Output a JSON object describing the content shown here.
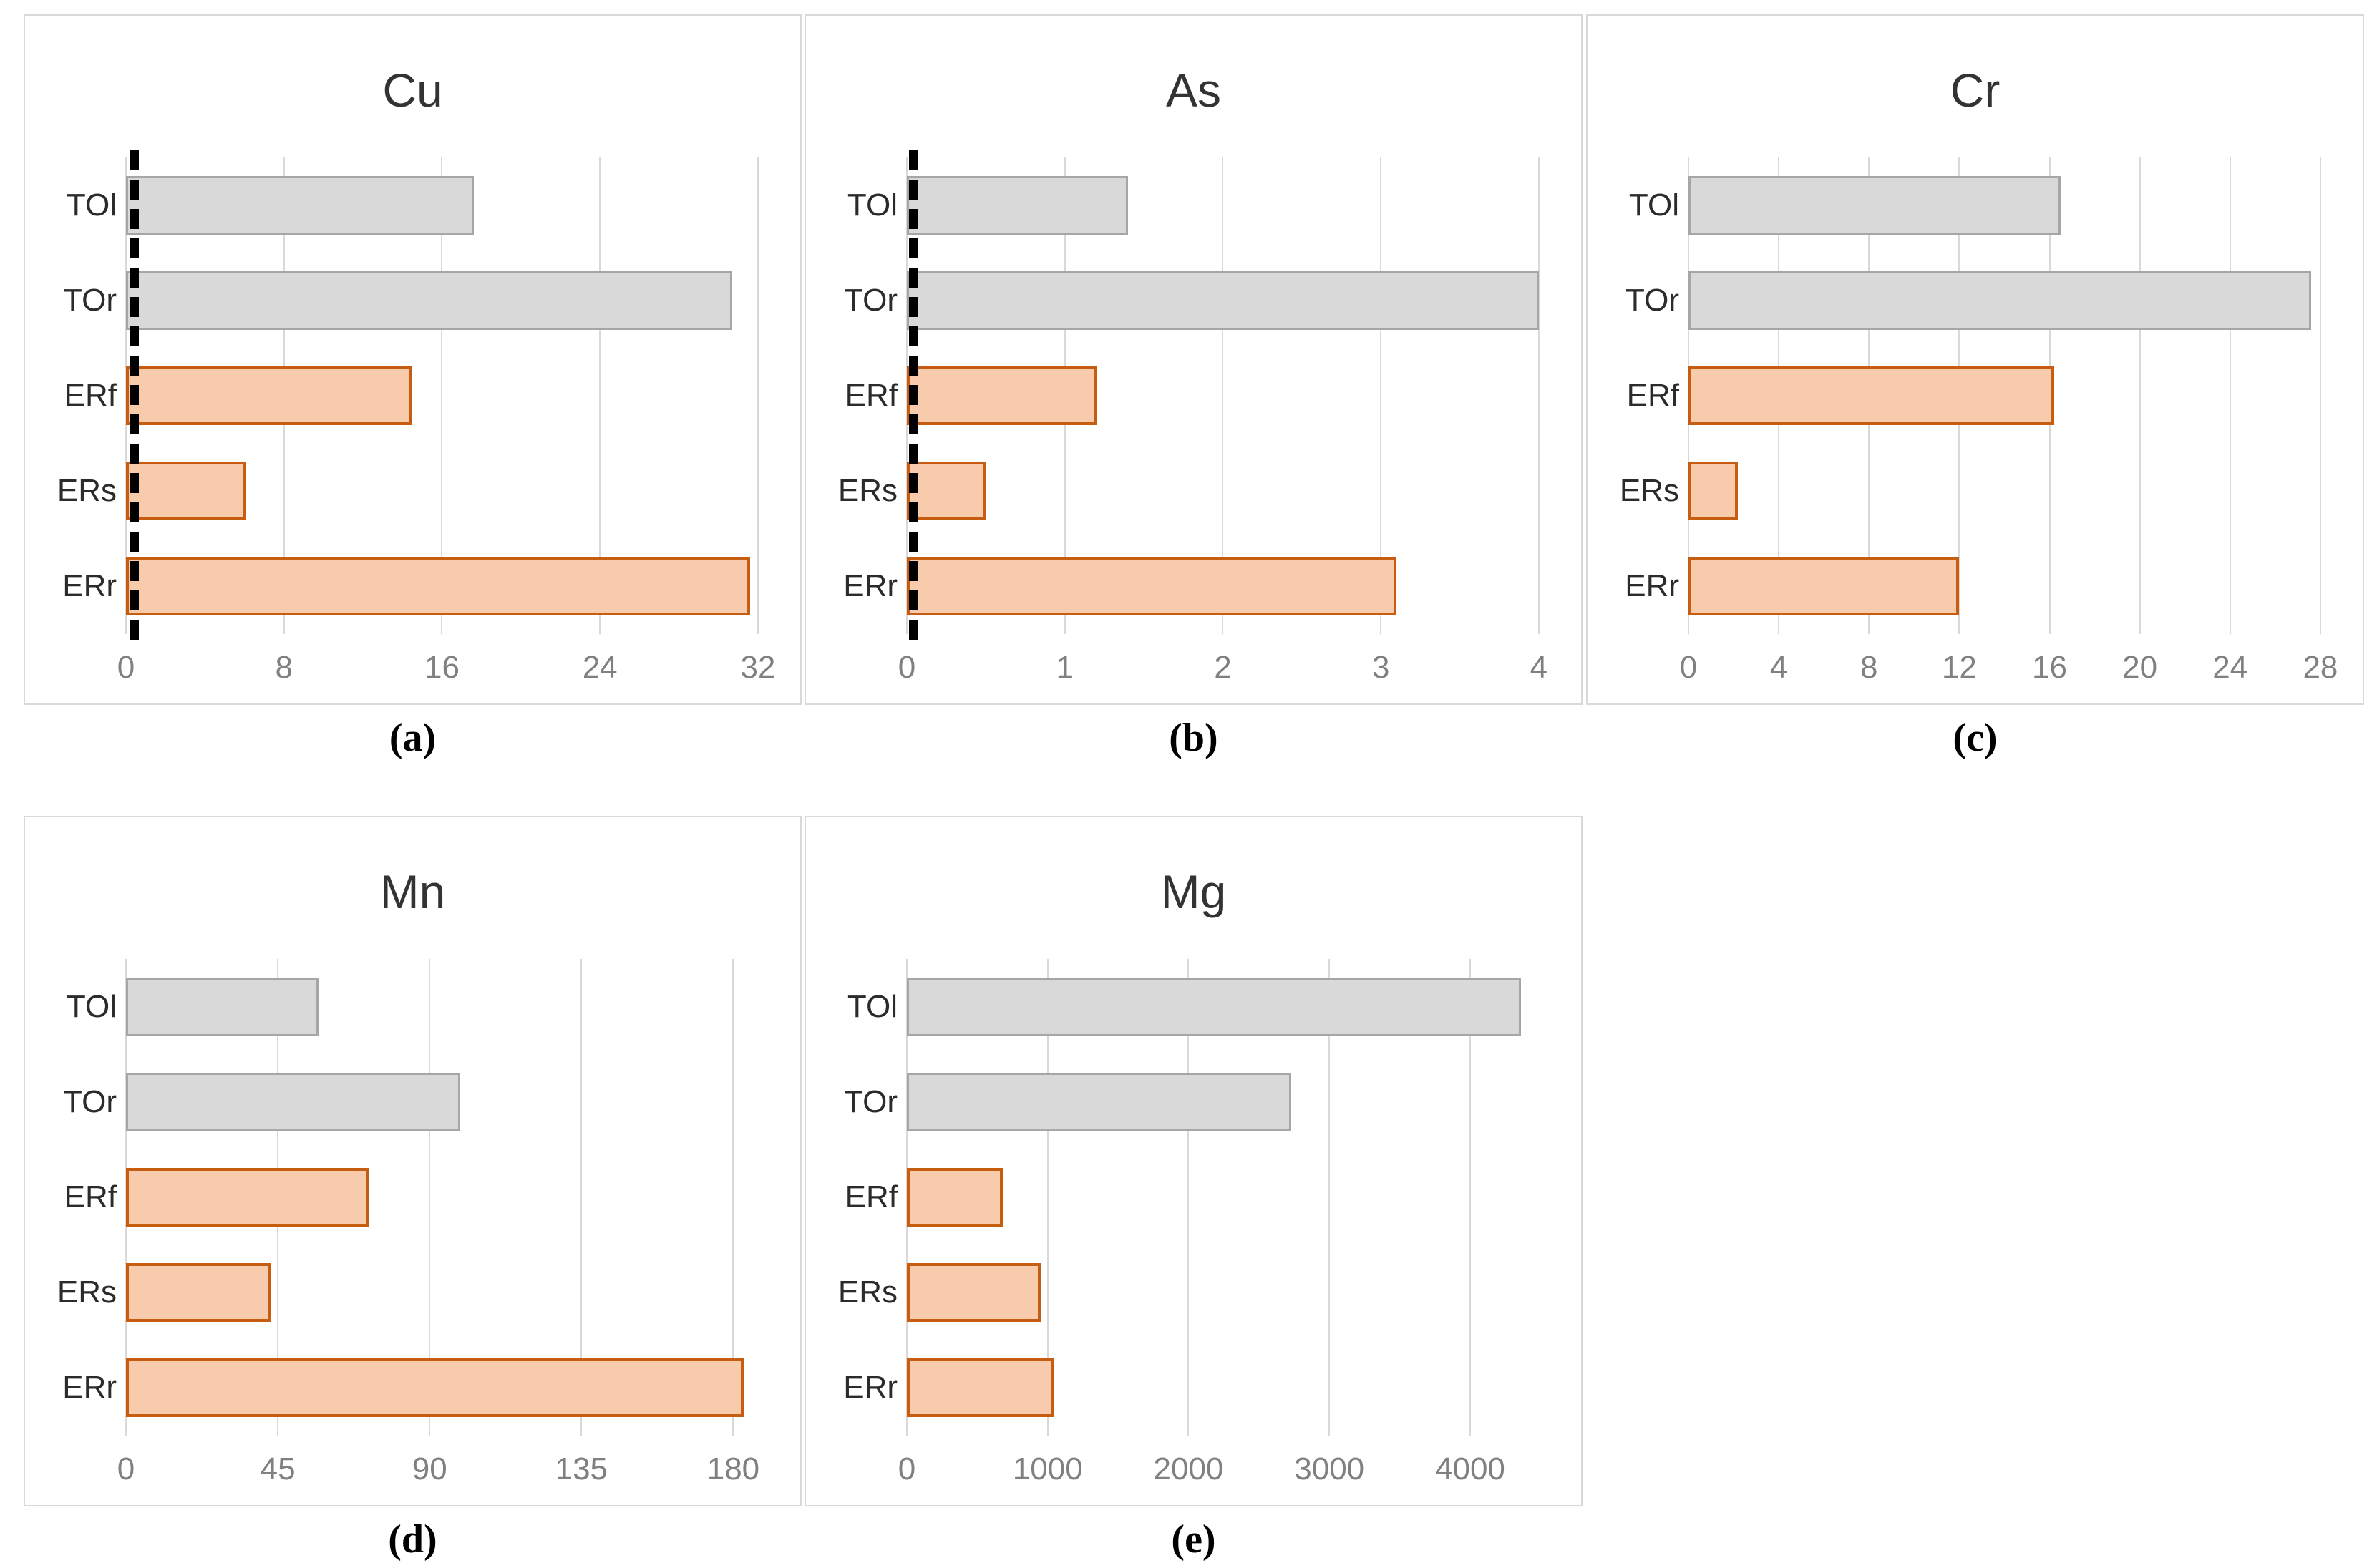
{
  "figure": {
    "background": "#ffffff",
    "panel_border_color": "#d9d9d9",
    "gridline_color": "#d9d9d9",
    "axis_line_color": "#d9d9d9",
    "title_color": "#333333",
    "category_label_color": "#2b2b2b",
    "tick_label_color": "#808080",
    "caption_color": "#000000",
    "reference_line_color": "#000000",
    "bar_styles": {
      "gray": {
        "fill": "#d9d9d9",
        "border": "#a6a6a6"
      },
      "orange": {
        "fill": "#f8cbad",
        "border": "#c75d11"
      }
    }
  },
  "chart_data": [
    {
      "type": "bar",
      "orientation": "horizontal",
      "title": "Cu",
      "caption": "(a)",
      "categories": [
        "TOl",
        "TOr",
        "ERf",
        "ERs",
        "ERr"
      ],
      "values": [
        17.6,
        30.7,
        14.5,
        6.1,
        31.6
      ],
      "bar_colors": [
        "gray",
        "gray",
        "orange",
        "orange",
        "orange"
      ],
      "xticks": [
        0,
        8,
        16,
        24,
        32
      ],
      "xlim": [
        0,
        32.8
      ],
      "grid": true,
      "legend": false,
      "reference_line_x": 0.45
    },
    {
      "type": "bar",
      "orientation": "horizontal",
      "title": "As",
      "caption": "(b)",
      "categories": [
        "TOl",
        "TOr",
        "ERf",
        "ERs",
        "ERr"
      ],
      "values": [
        1.4,
        4.0,
        1.2,
        0.5,
        3.1
      ],
      "bar_colors": [
        "gray",
        "gray",
        "orange",
        "orange",
        "orange"
      ],
      "xticks": [
        0,
        1,
        2,
        3,
        4
      ],
      "xlim": [
        0,
        4.1
      ],
      "grid": true,
      "legend": false,
      "reference_line_x": 0.04
    },
    {
      "type": "bar",
      "orientation": "horizontal",
      "title": "Cr",
      "caption": "(c)",
      "categories": [
        "TOl",
        "TOr",
        "ERf",
        "ERs",
        "ERr"
      ],
      "values": [
        16.5,
        27.6,
        16.2,
        2.2,
        12.0
      ],
      "bar_colors": [
        "gray",
        "gray",
        "orange",
        "orange",
        "orange"
      ],
      "xticks": [
        0,
        4,
        8,
        12,
        16,
        20,
        24,
        28
      ],
      "xlim": [
        0,
        28.7
      ],
      "grid": true,
      "legend": false,
      "reference_line_x": null
    },
    {
      "type": "bar",
      "orientation": "horizontal",
      "title": "Mn",
      "caption": "(d)",
      "categories": [
        "TOl",
        "TOr",
        "ERf",
        "ERs",
        "ERr"
      ],
      "values": [
        57,
        99,
        72,
        43,
        183
      ],
      "bar_colors": [
        "gray",
        "gray",
        "orange",
        "orange",
        "orange"
      ],
      "xticks": [
        0,
        45,
        90,
        135,
        180
      ],
      "xlim": [
        0,
        192
      ],
      "grid": true,
      "legend": false,
      "reference_line_x": null
    },
    {
      "type": "bar",
      "orientation": "horizontal",
      "title": "Mg",
      "caption": "(e)",
      "categories": [
        "TOl",
        "TOr",
        "ERf",
        "ERs",
        "ERr"
      ],
      "values": [
        4360,
        2730,
        680,
        950,
        1045
      ],
      "bar_colors": [
        "gray",
        "gray",
        "orange",
        "orange",
        "orange"
      ],
      "xticks": [
        0,
        1000,
        2000,
        3000,
        4000
      ],
      "xlim": [
        0,
        4600
      ],
      "grid": true,
      "legend": false,
      "reference_line_x": null
    }
  ]
}
